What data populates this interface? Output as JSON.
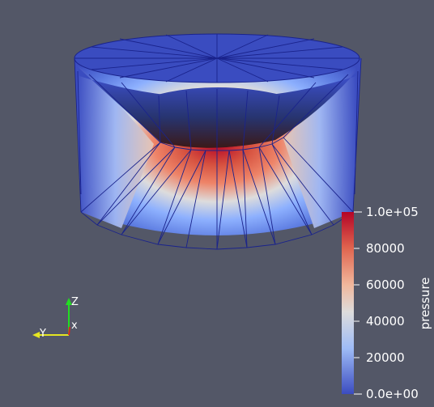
{
  "colorbar": {
    "title": "pressure",
    "ticks": [
      "1.0e+05",
      "80000",
      "60000",
      "40000",
      "20000",
      "0.0e+00"
    ],
    "colors": {
      "high": "#b40426",
      "mid_high": "#ee8468",
      "mid": "#dddcdc",
      "mid_low": "#8db0fe",
      "low": "#3b4cc0"
    }
  },
  "orientation_axes": {
    "z_label": "Z",
    "y_label": "Y",
    "x_label": "x",
    "z_color": "#22dd22",
    "y_color": "#e5e522",
    "x_color": "#dd2222"
  },
  "scene": {
    "background": "#535767",
    "mesh_edge_color": "#1a238c",
    "top_cap_color": "#3a4cc0"
  }
}
